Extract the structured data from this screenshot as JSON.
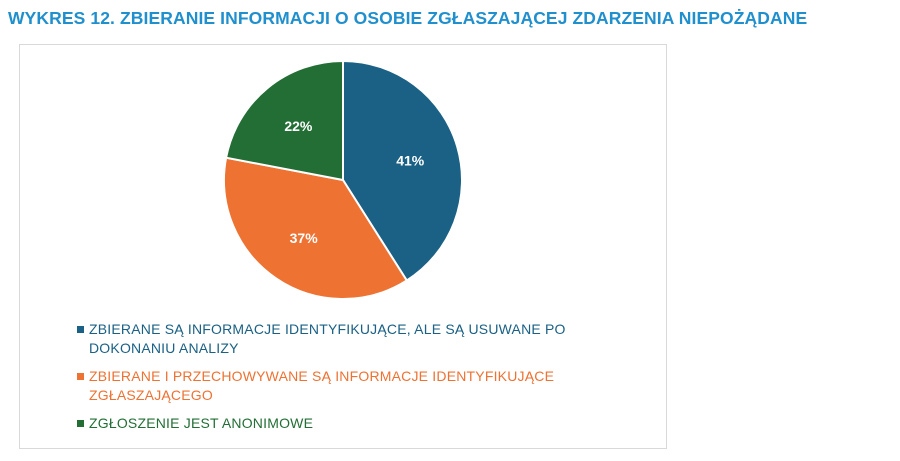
{
  "title": "WYKRES 12. ZBIERANIE INFORMACJI O OSOBIE ZGŁASZAJĄCEJ ZDARZENIA NIEPOŻĄDANE",
  "chart_data": {
    "type": "pie",
    "title": "WYKRES 12. ZBIERANIE INFORMACJI O OSOBIE ZGŁASZAJĄCEJ ZDARZENIA NIEPOŻĄDANE",
    "legend_position": "bottom",
    "slices": [
      {
        "label": "ZBIERANE SĄ INFORMACJE IDENTYFIKUJĄCE, ALE SĄ USUWANE PO DOKONANIU ANALIZY",
        "value": 41,
        "value_label": "41%",
        "color": "#1a6185"
      },
      {
        "label": "ZBIERANE I PRZECHOWYWANE SĄ INFORMACJE IDENTYFIKUJĄCE ZGŁASZAJĄCEGO",
        "value": 37,
        "value_label": "37%",
        "color": "#ee7232"
      },
      {
        "label": "ZGŁOSZENIE JEST ANONIMOWE",
        "value": 22,
        "value_label": "22%",
        "color": "#226e35"
      }
    ]
  }
}
